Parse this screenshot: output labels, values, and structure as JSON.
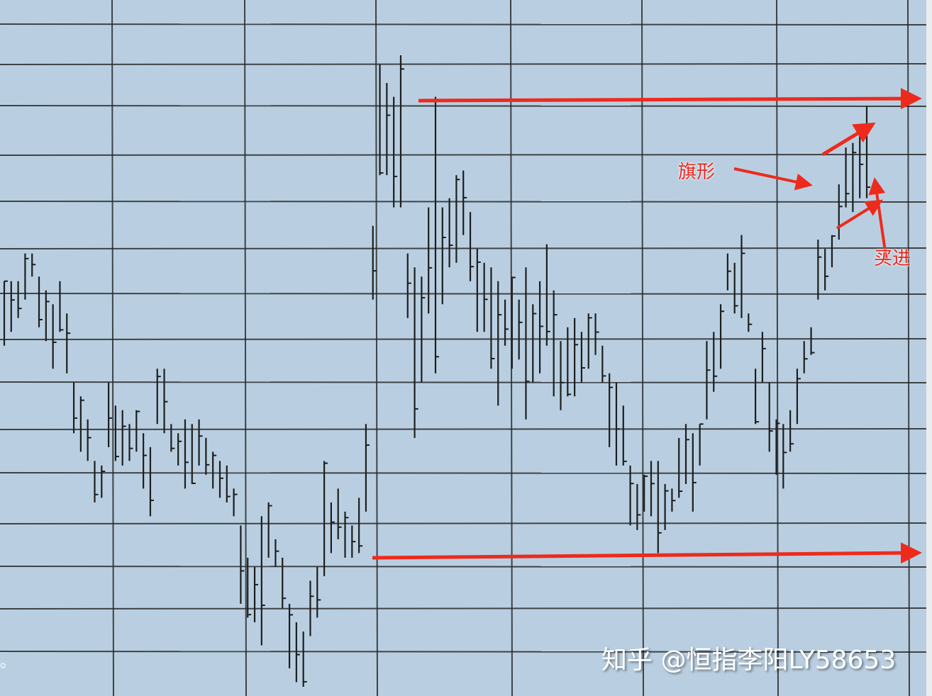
{
  "chart_data": {
    "type": "ohlc-bar",
    "title": "",
    "xlabel": "",
    "ylabel": "",
    "grid": true,
    "ylim": [
      0,
      15.1
    ],
    "bars_high_low": [
      [
        9.0,
        7.6
      ],
      [
        9.0,
        7.9
      ],
      [
        9.0,
        8.2
      ],
      [
        9.6,
        8.6
      ],
      [
        9.6,
        9.1
      ],
      [
        9.1,
        8.0
      ],
      [
        8.8,
        7.7
      ],
      [
        8.5,
        7.1
      ],
      [
        9.0,
        7.9
      ],
      [
        8.3,
        7.0
      ],
      [
        6.8,
        5.7
      ],
      [
        6.5,
        5.3
      ],
      [
        6.0,
        5.1
      ],
      [
        5.1,
        4.2
      ],
      [
        5.0,
        4.3
      ],
      [
        6.8,
        5.4
      ],
      [
        6.3,
        5.1
      ],
      [
        6.2,
        5.0
      ],
      [
        5.9,
        5.1
      ],
      [
        6.2,
        5.3
      ],
      [
        5.7,
        4.5
      ],
      [
        5.4,
        3.9
      ],
      [
        7.1,
        5.9
      ],
      [
        7.1,
        5.7
      ],
      [
        5.9,
        5.3
      ],
      [
        5.7,
        5.0
      ],
      [
        6.0,
        4.5
      ],
      [
        5.9,
        4.6
      ],
      [
        6.0,
        5.0
      ],
      [
        5.6,
        4.8
      ],
      [
        5.3,
        4.5
      ],
      [
        5.1,
        4.3
      ],
      [
        5.0,
        4.2
      ],
      [
        4.5,
        3.9
      ],
      [
        3.7,
        2.0
      ],
      [
        3.0,
        1.7
      ],
      [
        2.8,
        1.6
      ],
      [
        3.9,
        1.1
      ],
      [
        4.2,
        3.0
      ],
      [
        3.4,
        2.8
      ],
      [
        3.0,
        1.9
      ],
      [
        2.0,
        0.6
      ],
      [
        1.6,
        0.3
      ],
      [
        1.4,
        0.2
      ],
      [
        2.5,
        1.3
      ],
      [
        2.8,
        1.7
      ],
      [
        5.1,
        2.6
      ],
      [
        4.2,
        3.1
      ],
      [
        4.5,
        3.4
      ],
      [
        4.0,
        3.0
      ],
      [
        3.7,
        3.0
      ],
      [
        4.3,
        3.1
      ],
      [
        5.9,
        4.0
      ],
      [
        10.2,
        8.6
      ],
      [
        13.7,
        11.3
      ],
      [
        13.3,
        11.3
      ],
      [
        13.0,
        10.6
      ],
      [
        13.9,
        10.6
      ],
      [
        9.6,
        8.2
      ],
      [
        9.3,
        5.6
      ],
      [
        9.1,
        6.8
      ],
      [
        10.6,
        8.3
      ],
      [
        13.0,
        7.0
      ],
      [
        10.6,
        8.5
      ],
      [
        10.8,
        9.3
      ],
      [
        11.3,
        9.4
      ],
      [
        11.4,
        10.0
      ],
      [
        10.5,
        9.0
      ],
      [
        9.7,
        7.9
      ],
      [
        9.4,
        7.9
      ],
      [
        9.3,
        7.1
      ],
      [
        9.0,
        6.3
      ],
      [
        8.6,
        7.6
      ],
      [
        9.1,
        7.1
      ],
      [
        8.6,
        7.3
      ],
      [
        9.3,
        6.0
      ],
      [
        8.5,
        6.8
      ],
      [
        9.0,
        7.0
      ],
      [
        9.8,
        7.6
      ],
      [
        8.8,
        6.5
      ],
      [
        7.7,
        6.2
      ],
      [
        8.0,
        6.5
      ],
      [
        8.2,
        6.5
      ],
      [
        7.9,
        6.8
      ],
      [
        8.3,
        7.1
      ],
      [
        8.3,
        7.4
      ],
      [
        7.6,
        6.8
      ],
      [
        7.0,
        5.4
      ],
      [
        6.8,
        5.0
      ],
      [
        6.3,
        5.0
      ],
      [
        5.0,
        3.7
      ],
      [
        4.6,
        3.6
      ],
      [
        4.8,
        4.0
      ],
      [
        5.1,
        3.9
      ],
      [
        5.1,
        3.1
      ],
      [
        4.6,
        3.6
      ],
      [
        4.5,
        4.0
      ],
      [
        5.6,
        4.3
      ],
      [
        5.9,
        4.6
      ],
      [
        5.7,
        4.0
      ],
      [
        5.9,
        5.0
      ],
      [
        7.7,
        6.0
      ],
      [
        7.9,
        6.6
      ],
      [
        8.5,
        7.1
      ],
      [
        9.6,
        8.8
      ],
      [
        9.4,
        8.3
      ],
      [
        10.0,
        8.2
      ],
      [
        8.3,
        7.9
      ],
      [
        7.1,
        5.9
      ],
      [
        7.9,
        6.8
      ],
      [
        6.8,
        5.3
      ],
      [
        6.0,
        4.8
      ],
      [
        5.9,
        4.5
      ],
      [
        6.2,
        5.3
      ],
      [
        7.1,
        5.9
      ],
      [
        7.7,
        7.0
      ],
      [
        8.0,
        7.4
      ],
      [
        9.9,
        8.6
      ],
      [
        9.7,
        8.8
      ],
      [
        10.0,
        9.3
      ],
      [
        11.1,
        9.9
      ],
      [
        11.9,
        10.6
      ],
      [
        12.0,
        10.5
      ],
      [
        12.3,
        10.8
      ],
      [
        12.8,
        10.8
      ]
    ],
    "resistance_level": 13.0,
    "support_level": 3.0,
    "annotations": {
      "flag": "旗形",
      "buy": "买进"
    },
    "colors": {
      "background": "#b9cfe1",
      "bars": "#1e1e1e",
      "grid": "#2a2a2a",
      "arrows": "#ee2a1c"
    }
  },
  "watermark": "知乎 @恒指李阳LY58653",
  "corner_mark": "。"
}
